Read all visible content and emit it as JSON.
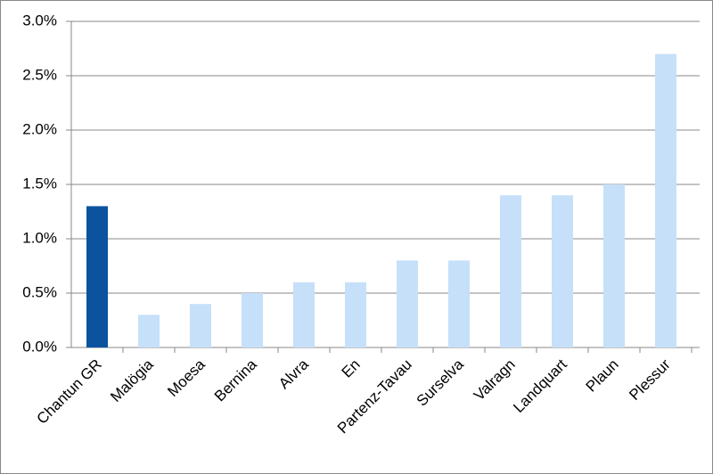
{
  "chart_data": {
    "type": "bar",
    "categories": [
      "Chantun GR",
      "Malögia",
      "Moesa",
      "Bernina",
      "Alvra",
      "En",
      "Partenz-Tavau",
      "Surselva",
      "Valragn",
      "Landquart",
      "Plaun",
      "Plessur"
    ],
    "values": [
      1.3,
      0.3,
      0.4,
      0.5,
      0.6,
      0.6,
      0.8,
      0.8,
      1.4,
      1.4,
      1.5,
      2.7
    ],
    "colors": [
      "#0b539f",
      "#c6e0f9",
      "#c6e0f9",
      "#c6e0f9",
      "#c6e0f9",
      "#c6e0f9",
      "#c6e0f9",
      "#c6e0f9",
      "#c6e0f9",
      "#c6e0f9",
      "#c6e0f9",
      "#c6e0f9"
    ],
    "ylim": [
      0,
      3
    ],
    "yticks": [
      {
        "value": 0,
        "label": "0.0%"
      },
      {
        "value": 0.5,
        "label": "0.5%"
      },
      {
        "value": 1,
        "label": "1.0%"
      },
      {
        "value": 1.5,
        "label": "1.5%"
      },
      {
        "value": 2,
        "label": "2.0%"
      },
      {
        "value": 2.5,
        "label": "2.5%"
      },
      {
        "value": 3,
        "label": "3.0%"
      }
    ],
    "grid": true
  }
}
